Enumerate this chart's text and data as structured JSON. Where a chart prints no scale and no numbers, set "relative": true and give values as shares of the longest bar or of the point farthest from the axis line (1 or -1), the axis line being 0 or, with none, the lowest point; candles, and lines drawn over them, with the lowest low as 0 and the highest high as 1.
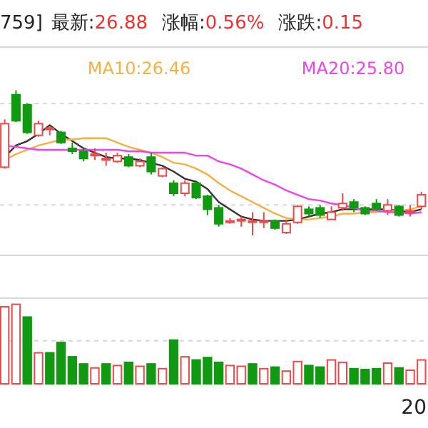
{
  "chart_data": [
    {
      "type": "candlestick",
      "relative": true,
      "title": "759]",
      "annotations": [
        "最新:26.88",
        "涨幅:0.56%",
        "涨跌:0.15"
      ],
      "legend": "top",
      "ref_lines": [
        {
          "axis": "y",
          "value": 0.91,
          "color": "#d8d8d8",
          "line_style": "dashed"
        },
        {
          "axis": "y",
          "value": 0.21,
          "color": "#d8d8d8",
          "line_style": "dashed"
        }
      ],
      "categories": [
        null,
        null,
        null,
        null,
        null,
        null,
        null,
        null,
        null,
        null,
        null,
        null,
        null,
        null,
        null,
        null,
        null,
        null,
        null,
        null,
        null,
        null,
        null,
        null,
        null,
        null,
        null,
        null,
        null,
        null,
        null,
        null,
        null,
        null,
        null,
        null,
        null,
        null
      ],
      "ohlc": [
        [
          0.47,
          0.8,
          0.46,
          0.77
        ],
        [
          0.97,
          1,
          0.78,
          0.79
        ],
        [
          0.9,
          0.91,
          0.7,
          0.71
        ],
        [
          0.69,
          0.79,
          0.68,
          0.77
        ],
        [
          0.73,
          0.75,
          0.69,
          0.74
        ],
        [
          0.71,
          0.72,
          0.63,
          0.64
        ],
        [
          0.6,
          0.64,
          0.56,
          0.58
        ],
        [
          0.58,
          0.6,
          0.51,
          0.53
        ],
        [
          0.55,
          0.6,
          0.52,
          0.56
        ],
        [
          0.53,
          0.57,
          0.48,
          0.53
        ],
        [
          0.51,
          0.57,
          0.5,
          0.55
        ],
        [
          0.54,
          0.56,
          0.47,
          0.48
        ],
        [
          0.48,
          0.53,
          0.47,
          0.51
        ],
        [
          0.54,
          0.57,
          0.42,
          0.44
        ],
        [
          0.41,
          0.47,
          0.4,
          0.46
        ],
        [
          0.36,
          0.38,
          0.27,
          0.29
        ],
        [
          0.29,
          0.38,
          0.27,
          0.36
        ],
        [
          0.36,
          0.37,
          0.25,
          0.26
        ],
        [
          0.27,
          0.28,
          0.14,
          0.18
        ],
        [
          0.19,
          0.21,
          0.06,
          0.08
        ],
        [
          0.1,
          0.12,
          0.08,
          0.1
        ],
        [
          0.11,
          0.13,
          0.06,
          0.11
        ],
        [
          0.1,
          0.16,
          0,
          0.1
        ],
        [
          0.1,
          0.16,
          0.05,
          0.1
        ],
        [
          0.1,
          0.11,
          0.04,
          0.05
        ],
        [
          0.02,
          0.11,
          0.01,
          0.08
        ],
        [
          0.09,
          0.21,
          0.08,
          0.2
        ],
        [
          0.18,
          0.2,
          0.13,
          0.15
        ],
        [
          0.19,
          0.21,
          0.12,
          0.14
        ],
        [
          0.11,
          0.2,
          0.11,
          0.16
        ],
        [
          0.19,
          0.29,
          0.17,
          0.22
        ],
        [
          0.23,
          0.25,
          0.16,
          0.19
        ],
        [
          0.19,
          0.2,
          0.14,
          0.15
        ],
        [
          0.22,
          0.25,
          0.17,
          0.18
        ],
        [
          0.17,
          0.25,
          0.14,
          0.21
        ],
        [
          0.2,
          0.21,
          0.13,
          0.14
        ],
        [
          0.17,
          0.21,
          0.13,
          0.17
        ],
        [
          0.2,
          0.3,
          0.18,
          0.28
        ]
      ],
      "colors": [
        "#f04848",
        "#119911",
        "#119911",
        "#f04848",
        "#f04848",
        "#119911",
        "#119911",
        "#119911",
        "#f04848",
        "#f04848",
        "#f04848",
        "#119911",
        "#f04848",
        "#119911",
        "#f04848",
        "#119911",
        "#f04848",
        "#119911",
        "#119911",
        "#119911",
        "#f04848",
        "#f04848",
        "#f04848",
        "#f04848",
        "#119911",
        "#f04848",
        "#f04848",
        "#119911",
        "#119911",
        "#f04848",
        "#f04848",
        "#119911",
        "#119911",
        "#119911",
        "#f04848",
        "#119911",
        "#f04848",
        "#f04848"
      ],
      "series": [
        {
          "type": "line",
          "color": "#333333",
          "values": [
            0.54,
            0.62,
            0.65,
            0.7,
            0.76,
            0.7,
            0.65,
            0.6,
            0.57,
            0.54,
            0.53,
            0.53,
            0.52,
            0.5,
            0.48,
            0.44,
            0.39,
            0.37,
            0.32,
            0.23,
            0.18,
            0.13,
            0.11,
            0.1,
            0.1,
            0.1,
            0.11,
            0.13,
            0.15,
            0.16,
            0.18,
            0.18,
            0.18,
            0.18,
            0.18,
            0.17,
            0.16,
            0.18
          ]
        },
        {
          "type": "line",
          "name": "MA10:26.46",
          "color": "#f5b041",
          "values": [
            0.52,
            0.56,
            0.59,
            0.62,
            0.64,
            0.66,
            0.66,
            0.67,
            0.67,
            0.67,
            0.64,
            0.61,
            0.59,
            0.57,
            0.54,
            0.5,
            0.49,
            0.46,
            0.42,
            0.36,
            0.31,
            0.27,
            0.23,
            0.19,
            0.15,
            0.12,
            0.11,
            0.11,
            0.12,
            0.13,
            0.15,
            0.15,
            0.16,
            0.16,
            0.17,
            0.17,
            0.18,
            0.2
          ]
        },
        {
          "type": "line",
          "name": "MA20:25.80",
          "color": "#ee44ee",
          "values": [
            0.62,
            0.61,
            0.6,
            0.59,
            0.59,
            0.59,
            0.59,
            0.59,
            0.59,
            0.59,
            0.59,
            0.58,
            0.58,
            0.57,
            0.57,
            0.57,
            0.57,
            0.55,
            0.55,
            0.51,
            0.49,
            0.46,
            0.42,
            0.38,
            0.35,
            0.31,
            0.28,
            0.25,
            0.24,
            0.22,
            0.21,
            0.19,
            0.17,
            0.17,
            0.16,
            0.16,
            0.15,
            0.16
          ]
        }
      ]
    },
    {
      "type": "bar",
      "relative": true,
      "annotations": [
        "20"
      ],
      "ref_lines": [
        {
          "axis": "y",
          "value": 0.54,
          "color": "#d8d8d8",
          "line_style": "dashed"
        }
      ],
      "categories": [
        null,
        null,
        null,
        null,
        null,
        null,
        null,
        null,
        null,
        null,
        null,
        null,
        null,
        null,
        null,
        null,
        null,
        null,
        null,
        null,
        null,
        null,
        null,
        null,
        null,
        null,
        null,
        null,
        null,
        null,
        null,
        null,
        null,
        null,
        null,
        null,
        null,
        null
      ],
      "values": [
        0.97,
        1,
        0.84,
        0.39,
        0.39,
        0.52,
        0.34,
        0.25,
        0.2,
        0.25,
        0.23,
        0.27,
        0.22,
        0.25,
        0.19,
        0.55,
        0.34,
        0.3,
        0.33,
        0.27,
        0.23,
        0.22,
        0.25,
        0.19,
        0.21,
        0.16,
        0.28,
        0.23,
        0.21,
        0.3,
        0.27,
        0.19,
        0.18,
        0.19,
        0.26,
        0.2,
        0.17,
        0.3
      ],
      "colors": [
        "#f04848",
        "#f04848",
        "#119911",
        "#f04848",
        "#119911",
        "#119911",
        "#119911",
        "#119911",
        "#f04848",
        "#119911",
        "#f04848",
        "#119911",
        "#f04848",
        "#119911",
        "#f04848",
        "#119911",
        "#f04848",
        "#119911",
        "#119911",
        "#119911",
        "#f04848",
        "#f04848",
        "#119911",
        "#f04848",
        "#119911",
        "#f04848",
        "#f04848",
        "#119911",
        "#119911",
        "#f04848",
        "#f04848",
        "#119911",
        "#119911",
        "#119911",
        "#f04848",
        "#119911",
        "#f04848",
        "#f04848"
      ]
    }
  ]
}
